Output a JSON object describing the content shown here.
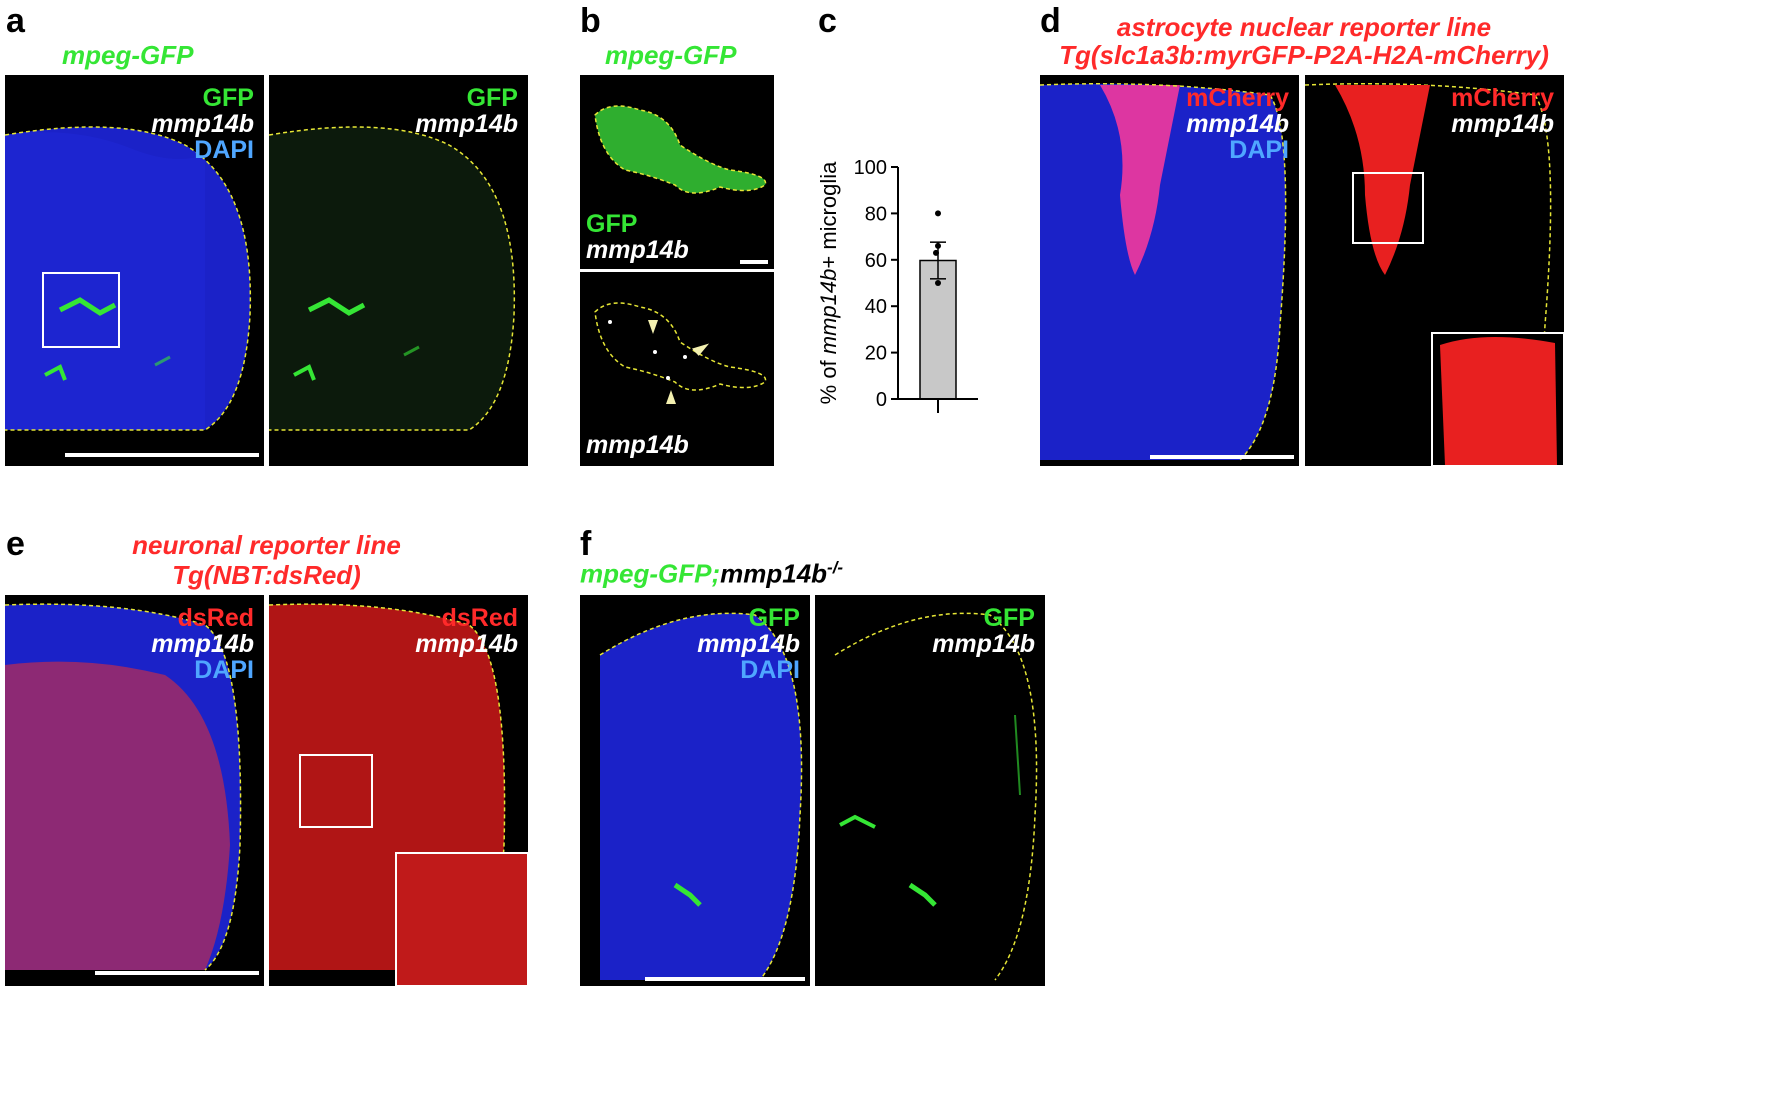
{
  "colors": {
    "gfp": "#35e635",
    "mcherry": "#ff2a2a",
    "dapi": "#4fa6ff",
    "probe": "#ffffff",
    "tissue_blue": "#1b22c8",
    "tissue_red": "#b01515",
    "outline": "#e6e635"
  },
  "panel_a": {
    "letter": "a",
    "title": "mpeg-GFP",
    "merge": {
      "ch1": "GFP",
      "ch2": "mmp14b",
      "ch3": "DAPI"
    },
    "split": {
      "ch1": "GFP",
      "ch2": "mmp14b"
    }
  },
  "panel_b": {
    "letter": "b",
    "title": "mpeg-GFP",
    "top": {
      "ch1": "GFP",
      "ch2": "mmp14b"
    },
    "bottom": {
      "ch1": "mmp14b"
    }
  },
  "panel_c": {
    "letter": "c"
  },
  "chart_data": {
    "type": "bar",
    "categories": [
      ""
    ],
    "values": [
      59.7
    ],
    "error": [
      7.9
    ],
    "points": [
      80,
      66,
      63,
      50
    ],
    "ylabel_prefix": "% of ",
    "ylabel_italic": "mmp14b",
    "ylabel_suffix": "+ microglia",
    "ylim": [
      0,
      100
    ],
    "yticks": [
      "0",
      "20",
      "40",
      "60",
      "80",
      "100"
    ],
    "bar_color": "#c8c8c8"
  },
  "panel_d": {
    "letter": "d",
    "title_line1": "astrocyte nuclear reporter line",
    "title_line2": "Tg(slc1a3b:myrGFP-P2A-H2A-mCherry)",
    "merge": {
      "ch1": "mCherry",
      "ch2": "mmp14b",
      "ch3": "DAPI"
    },
    "split": {
      "ch1": "mCherry",
      "ch2": "mmp14b"
    }
  },
  "panel_e": {
    "letter": "e",
    "title_line1": "neuronal reporter line",
    "title_line2": "Tg(NBT:dsRed)",
    "merge": {
      "ch1": "dsRed",
      "ch2": "mmp14b",
      "ch3": "DAPI"
    },
    "split": {
      "ch1": "dsRed",
      "ch2": "mmp14b"
    }
  },
  "panel_f": {
    "letter": "f",
    "title_green": "mpeg-GFP;",
    "title_black": "mmp14b",
    "title_sup": "-/-",
    "merge": {
      "ch1": "GFP",
      "ch2": "mmp14b",
      "ch3": "DAPI"
    },
    "split": {
      "ch1": "GFP",
      "ch2": "mmp14b"
    }
  }
}
